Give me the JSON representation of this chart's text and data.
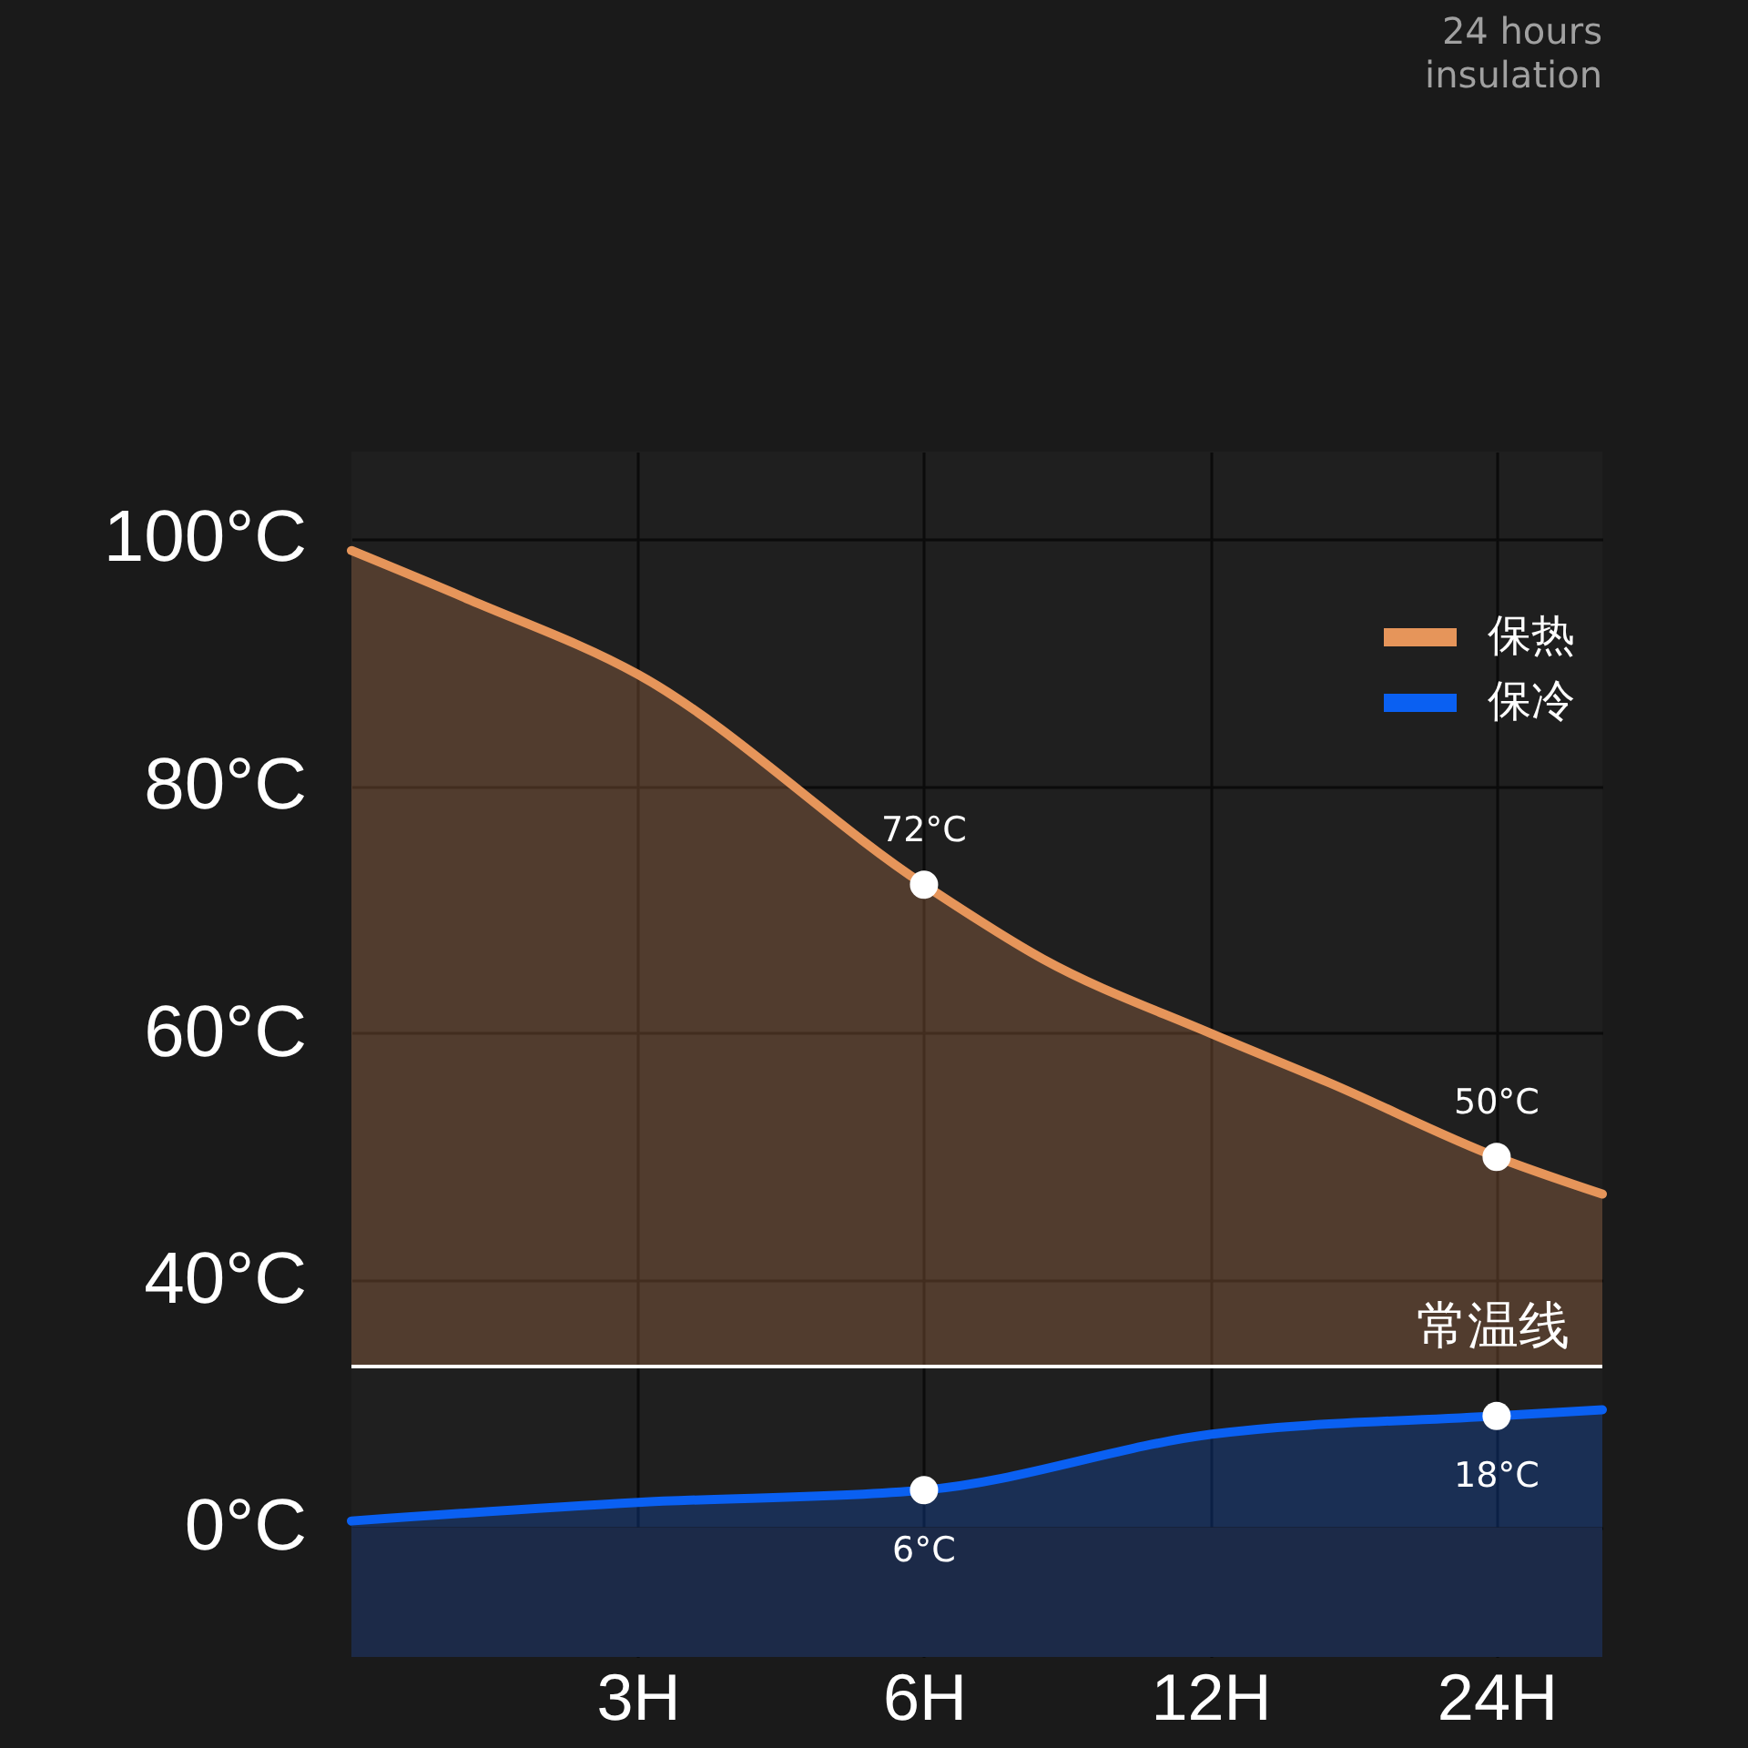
{
  "chart_data": {
    "type": "area",
    "title": "24 hours insulation",
    "x": [
      1.5,
      2,
      3,
      6,
      8,
      12,
      16,
      24,
      31
    ],
    "series": [
      {
        "name": "保热",
        "color": "#e6955a",
        "values": [
          99,
          95,
          89,
          72,
          66,
          60,
          56,
          50,
          47
        ],
        "value_labels": [
          null,
          null,
          null,
          "72°C",
          null,
          null,
          null,
          "50°C",
          null
        ]
      },
      {
        "name": "保冷",
        "color": "#0a60f2",
        "axis": "y2",
        "x": [
          1.5,
          3,
          6,
          12,
          24,
          31
        ],
        "values": [
          1,
          4,
          6,
          15,
          18,
          19
        ],
        "value_labels": [
          null,
          null,
          "6°C",
          null,
          "18°C",
          null
        ]
      }
    ],
    "log": "x",
    "xlim": [
      1.5,
      31
    ],
    "xticks": [
      {
        "value": 3,
        "label": "3H"
      },
      {
        "value": 6,
        "label": "6H"
      },
      {
        "value": 12,
        "label": "12H"
      },
      {
        "value": 24,
        "label": "24H"
      }
    ],
    "ylim": [
      9.6,
      107
    ],
    "yticks": [
      {
        "value": 60,
        "label": "60°C"
      },
      {
        "value": 80,
        "label": "80°C"
      },
      {
        "value": 100,
        "label": "100°C"
      }
    ],
    "y2lim": [
      -21,
      174
    ],
    "y2ticks": [
      {
        "value": 0,
        "label": "0°C"
      },
      {
        "value": 40,
        "label": "40°C"
      }
    ],
    "ref_lines": [
      {
        "axis": "y2",
        "value": 26,
        "label": "常温线",
        "color": "#ffffff"
      }
    ],
    "bands": [
      {
        "axis": "y2",
        "from": -21,
        "to": 0,
        "color": "#1c2a48"
      }
    ],
    "grid": true,
    "legend": "top right"
  }
}
